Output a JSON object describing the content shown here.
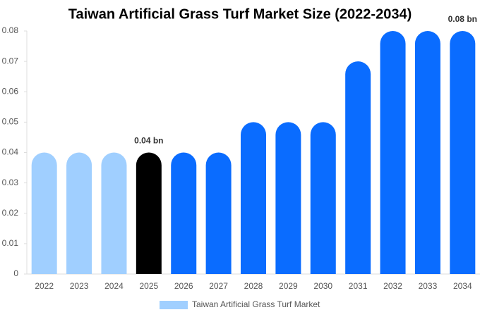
{
  "chart_data": {
    "type": "bar",
    "title": "Taiwan Artificial Grass Turf Market Size (2022-2034)",
    "categories": [
      "2022",
      "2023",
      "2024",
      "2025",
      "2026",
      "2027",
      "2028",
      "2029",
      "2030",
      "2031",
      "2032",
      "2033",
      "2034"
    ],
    "series": [
      {
        "name": "Taiwan Artificial Grass Turf Market",
        "color": "#a0cfff",
        "values": [
          0.04,
          0.04,
          0.04,
          0.04,
          0.04,
          0.04,
          0.05,
          0.05,
          0.05,
          0.07,
          0.08,
          0.08,
          0.08
        ],
        "colors": [
          "#a0cfff",
          "#a0cfff",
          "#a0cfff",
          "#000000",
          "#0a6cff",
          "#0a6cff",
          "#0a6cff",
          "#0a6cff",
          "#0a6cff",
          "#0a6cff",
          "#0a6cff",
          "#0a6cff",
          "#0a6cff"
        ],
        "value_labels": [
          null,
          null,
          null,
          "0.04 bn",
          null,
          null,
          null,
          null,
          null,
          null,
          null,
          null,
          "0.08 bn"
        ]
      }
    ],
    "ylim": [
      0,
      0.08
    ],
    "yticks": [
      0,
      0.01,
      0.02,
      0.03,
      0.04,
      0.05,
      0.06,
      0.07,
      0.08
    ],
    "grid": false
  }
}
